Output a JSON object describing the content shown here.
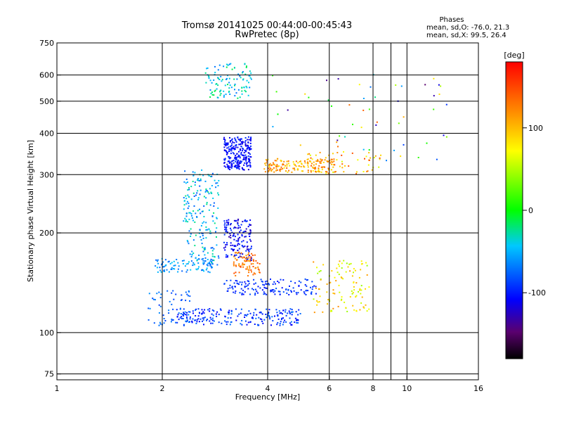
{
  "chart_data": {
    "type": "scatter",
    "title": "Tromsø 20141025 00:44:00-00:45:43",
    "subtitle": "RwPretec (8p)",
    "xlabel": "Frequency [MHz]",
    "ylabel": "Stationary phase Virtual Height [km]",
    "x_scale": "log2",
    "y_scale": "log",
    "xlim": [
      1,
      16
    ],
    "ylim": [
      72,
      750
    ],
    "x_ticks": [
      {
        "value": 1,
        "label": "1"
      },
      {
        "value": 2,
        "label": "2"
      },
      {
        "value": 4,
        "label": "4"
      },
      {
        "value": 6,
        "label": "6"
      },
      {
        "value": 8,
        "label": "8"
      },
      {
        "value": 10,
        "label": "10"
      },
      {
        "value": 16,
        "label": "16"
      }
    ],
    "x_gridlines": [
      2,
      4,
      6,
      8,
      9,
      10
    ],
    "y_ticks": [
      {
        "value": 75,
        "label": "75"
      },
      {
        "value": 100,
        "label": "100"
      },
      {
        "value": 200,
        "label": "200"
      },
      {
        "value": 300,
        "label": "300"
      },
      {
        "value": 400,
        "label": "400"
      },
      {
        "value": 500,
        "label": "500"
      },
      {
        "value": 600,
        "label": "600"
      },
      {
        "value": 750,
        "label": "750"
      }
    ],
    "legend": {
      "heading": "Phases",
      "line1": "mean, sd,O: -76.0, 21.3",
      "line2": "mean, sd,X:  99.5, 26.4"
    },
    "colorbar": {
      "label": "[deg]",
      "range": [
        -180,
        180
      ],
      "ticks": [
        {
          "value": 100,
          "label": "100"
        },
        {
          "value": 0,
          "label": "0"
        },
        {
          "value": -100,
          "label": "-100"
        }
      ]
    },
    "clusters": [
      {
        "name": "f-region-upper-trace",
        "f": [
          2.65,
          3.6
        ],
        "h": [
          510,
          650
        ],
        "phase": [
          -70,
          -10
        ],
        "n": 110
      },
      {
        "name": "f2-trace-dense",
        "f": [
          3.0,
          3.6
        ],
        "h": [
          310,
          390
        ],
        "phase": [
          -120,
          -90
        ],
        "n": 260
      },
      {
        "name": "f2-x-trace",
        "f": [
          3.9,
          6.2
        ],
        "h": [
          305,
          335
        ],
        "phase": [
          80,
          140
        ],
        "n": 160
      },
      {
        "name": "f2-scattered",
        "f": [
          5.2,
          8.5
        ],
        "h": [
          300,
          350
        ],
        "phase": [
          60,
          150
        ],
        "n": 60
      },
      {
        "name": "spread-column",
        "f": [
          2.3,
          2.9
        ],
        "h": [
          160,
          310
        ],
        "phase": [
          -80,
          -20
        ],
        "n": 200
      },
      {
        "name": "f1-cusp",
        "f": [
          3.0,
          3.6
        ],
        "h": [
          165,
          220
        ],
        "phase": [
          -130,
          -90
        ],
        "n": 150
      },
      {
        "name": "f1-x-blob",
        "f": [
          3.2,
          3.8
        ],
        "h": [
          148,
          175
        ],
        "phase": [
          110,
          150
        ],
        "n": 80
      },
      {
        "name": "e-region-trace",
        "f": [
          1.9,
          2.8
        ],
        "h": [
          152,
          168
        ],
        "phase": [
          -80,
          -40
        ],
        "n": 90
      },
      {
        "name": "low-trace-left",
        "f": [
          1.8,
          2.4
        ],
        "h": [
          105,
          135
        ],
        "phase": [
          -90,
          -60
        ],
        "n": 60
      },
      {
        "name": "low-trace-main",
        "f": [
          2.2,
          5.0
        ],
        "h": [
          105,
          118
        ],
        "phase": [
          -110,
          -70
        ],
        "n": 220
      },
      {
        "name": "mid-trace",
        "f": [
          3.0,
          5.5
        ],
        "h": [
          130,
          145
        ],
        "phase": [
          -105,
          -80
        ],
        "n": 140
      },
      {
        "name": "right-group",
        "f": [
          5.4,
          7.8
        ],
        "h": [
          115,
          165
        ],
        "phase": [
          40,
          120
        ],
        "n": 110
      },
      {
        "name": "sparse-high",
        "f": [
          4.0,
          13.0
        ],
        "h": [
          330,
          620
        ],
        "phase": [
          -150,
          150
        ],
        "n": 55
      }
    ]
  }
}
